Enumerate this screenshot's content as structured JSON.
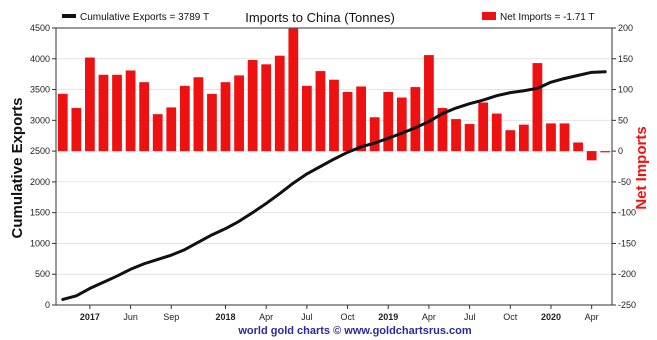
{
  "chart_data": {
    "type": "bar+line",
    "title": "Imports to China (Tonnes)",
    "footer": "world gold charts © www.goldchartsrus.com",
    "left_axis": {
      "label": "Cumulative Exports",
      "range": [
        0,
        4500
      ],
      "ticks": [
        0,
        500,
        1000,
        1500,
        2000,
        2500,
        3000,
        3500,
        4000,
        4500
      ],
      "color": "#111111"
    },
    "right_axis": {
      "label": "Net Imports",
      "range": [
        -250,
        200
      ],
      "ticks": [
        -250,
        -200,
        -150,
        -100,
        -50,
        0,
        50,
        100,
        150,
        200
      ],
      "color": "#ee1111"
    },
    "x_labels": [
      {
        "text": "2017",
        "bold": true,
        "pos": 2.5
      },
      {
        "text": "Jun",
        "bold": false,
        "pos": 5.5
      },
      {
        "text": "Sep",
        "bold": false,
        "pos": 8.5
      },
      {
        "text": "2018",
        "bold": true,
        "pos": 12.5
      },
      {
        "text": "Apr",
        "bold": false,
        "pos": 15.5
      },
      {
        "text": "Jul",
        "bold": false,
        "pos": 18.5
      },
      {
        "text": "Oct",
        "bold": false,
        "pos": 21.5
      },
      {
        "text": "2019",
        "bold": true,
        "pos": 24.5
      },
      {
        "text": "Apr",
        "bold": false,
        "pos": 27.5
      },
      {
        "text": "Jul",
        "bold": false,
        "pos": 30.5
      },
      {
        "text": "Oct",
        "bold": false,
        "pos": 33.5
      },
      {
        "text": "2020",
        "bold": true,
        "pos": 36.5
      },
      {
        "text": "Apr",
        "bold": false,
        "pos": 39.5
      }
    ],
    "series": [
      {
        "name": "Net Imports = -1.71 T",
        "type": "bar",
        "axis": "right",
        "color": "#ee1111",
        "values": [
          93,
          70,
          152,
          124,
          124,
          131,
          112,
          60,
          71,
          106,
          120,
          93,
          112,
          123,
          148,
          141,
          155,
          199,
          106,
          130,
          116,
          96,
          105,
          55,
          96,
          87,
          104,
          156,
          70,
          52,
          44,
          79,
          61,
          34,
          43,
          143,
          45,
          45,
          14,
          -15,
          -2
        ]
      },
      {
        "name": "Cumulative Exports = 3789 T",
        "type": "line",
        "axis": "left",
        "color": "#111111",
        "values": [
          90,
          150,
          270,
          370,
          470,
          580,
          670,
          740,
          810,
          900,
          1020,
          1140,
          1240,
          1360,
          1500,
          1650,
          1810,
          1980,
          2130,
          2250,
          2370,
          2480,
          2570,
          2630,
          2710,
          2790,
          2880,
          2980,
          3110,
          3200,
          3270,
          3330,
          3400,
          3450,
          3480,
          3520,
          3620,
          3680,
          3730,
          3780,
          3789
        ]
      }
    ]
  }
}
